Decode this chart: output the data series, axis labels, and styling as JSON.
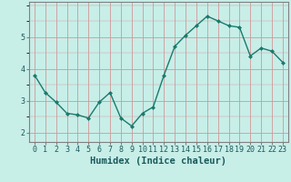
{
  "x": [
    0,
    1,
    2,
    3,
    4,
    5,
    6,
    7,
    8,
    9,
    10,
    11,
    12,
    13,
    14,
    15,
    16,
    17,
    18,
    19,
    20,
    21,
    22,
    23
  ],
  "y": [
    3.8,
    3.25,
    2.95,
    2.6,
    2.55,
    2.45,
    2.95,
    3.25,
    2.45,
    2.2,
    2.6,
    2.8,
    3.8,
    4.7,
    5.05,
    5.35,
    5.65,
    5.5,
    5.35,
    5.3,
    4.4,
    4.65,
    4.55,
    4.2
  ],
  "line_color": "#1a7a6e",
  "marker": "D",
  "marker_size": 2.0,
  "bg_color": "#c8eee8",
  "grid_color": "#d09898",
  "xlabel": "Humidex (Indice chaleur)",
  "ylim": [
    1.7,
    6.1
  ],
  "xlim": [
    -0.5,
    23.5
  ],
  "yticks": [
    2,
    3,
    4,
    5
  ],
  "xticks": [
    0,
    1,
    2,
    3,
    4,
    5,
    6,
    7,
    8,
    9,
    10,
    11,
    12,
    13,
    14,
    15,
    16,
    17,
    18,
    19,
    20,
    21,
    22,
    23
  ],
  "xlabel_fontsize": 7.5,
  "tick_fontsize": 6.0,
  "label_color": "#1a5a5a",
  "line_width": 1.0,
  "spine_color": "#808080"
}
